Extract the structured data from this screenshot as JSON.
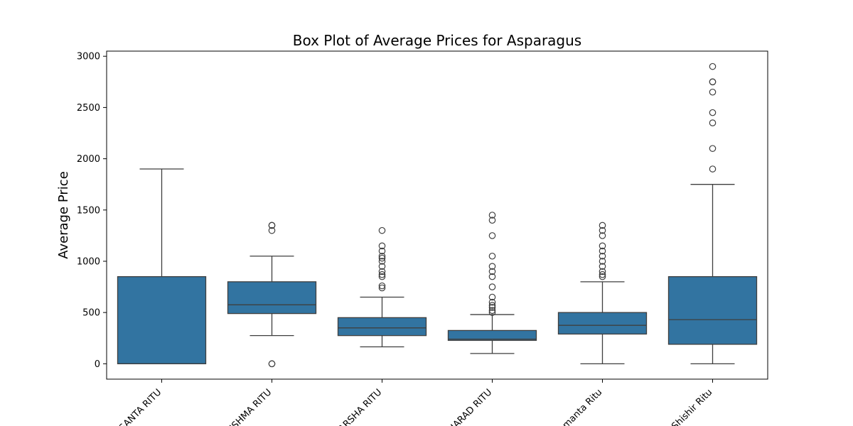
{
  "chart_data": {
    "type": "box",
    "title": "Box Plot of Average Prices for Asparagus",
    "xlabel": "",
    "ylabel": "Average Price",
    "ylim": [
      -150,
      3050
    ],
    "yticks": [
      0,
      500,
      1000,
      1500,
      2000,
      2500,
      3000
    ],
    "grid": false,
    "legend": "none",
    "box_color": "#3274a1",
    "line_color": "#3f3f3f",
    "categories": [
      "VASANTA RITU",
      "GRISHMA RITU",
      "VARSHA RITU",
      "SHARAD RITU",
      "Hemanta Ritu",
      "Shishir Ritu"
    ],
    "boxes": [
      {
        "whisker_low": 0,
        "q1": 0,
        "median": 0,
        "q3": 850,
        "whisker_high": 1900,
        "outliers": []
      },
      {
        "whisker_low": 275,
        "q1": 490,
        "median": 575,
        "q3": 800,
        "whisker_high": 1050,
        "outliers": [
          0,
          0,
          1300,
          1350,
          1350
        ]
      },
      {
        "whisker_low": 165,
        "q1": 275,
        "median": 350,
        "q3": 450,
        "whisker_high": 650,
        "outliers": [
          740,
          760,
          850,
          870,
          900,
          950,
          1000,
          1030,
          1050,
          1100,
          1150,
          1300
        ]
      },
      {
        "whisker_low": 100,
        "q1": 228,
        "median": 240,
        "q3": 325,
        "whisker_high": 480,
        "outliers": [
          500,
          520,
          550,
          570,
          600,
          650,
          750,
          850,
          900,
          950,
          1050,
          1250,
          1400,
          1450
        ]
      },
      {
        "whisker_low": 0,
        "q1": 290,
        "median": 375,
        "q3": 500,
        "whisker_high": 800,
        "outliers": [
          850,
          870,
          900,
          950,
          1000,
          1050,
          1100,
          1150,
          1250,
          1300,
          1350
        ]
      },
      {
        "whisker_low": 0,
        "q1": 190,
        "median": 430,
        "q3": 850,
        "whisker_high": 1750,
        "outliers": [
          1900,
          2100,
          2350,
          2450,
          2650,
          2750,
          2750,
          2900
        ]
      }
    ]
  }
}
